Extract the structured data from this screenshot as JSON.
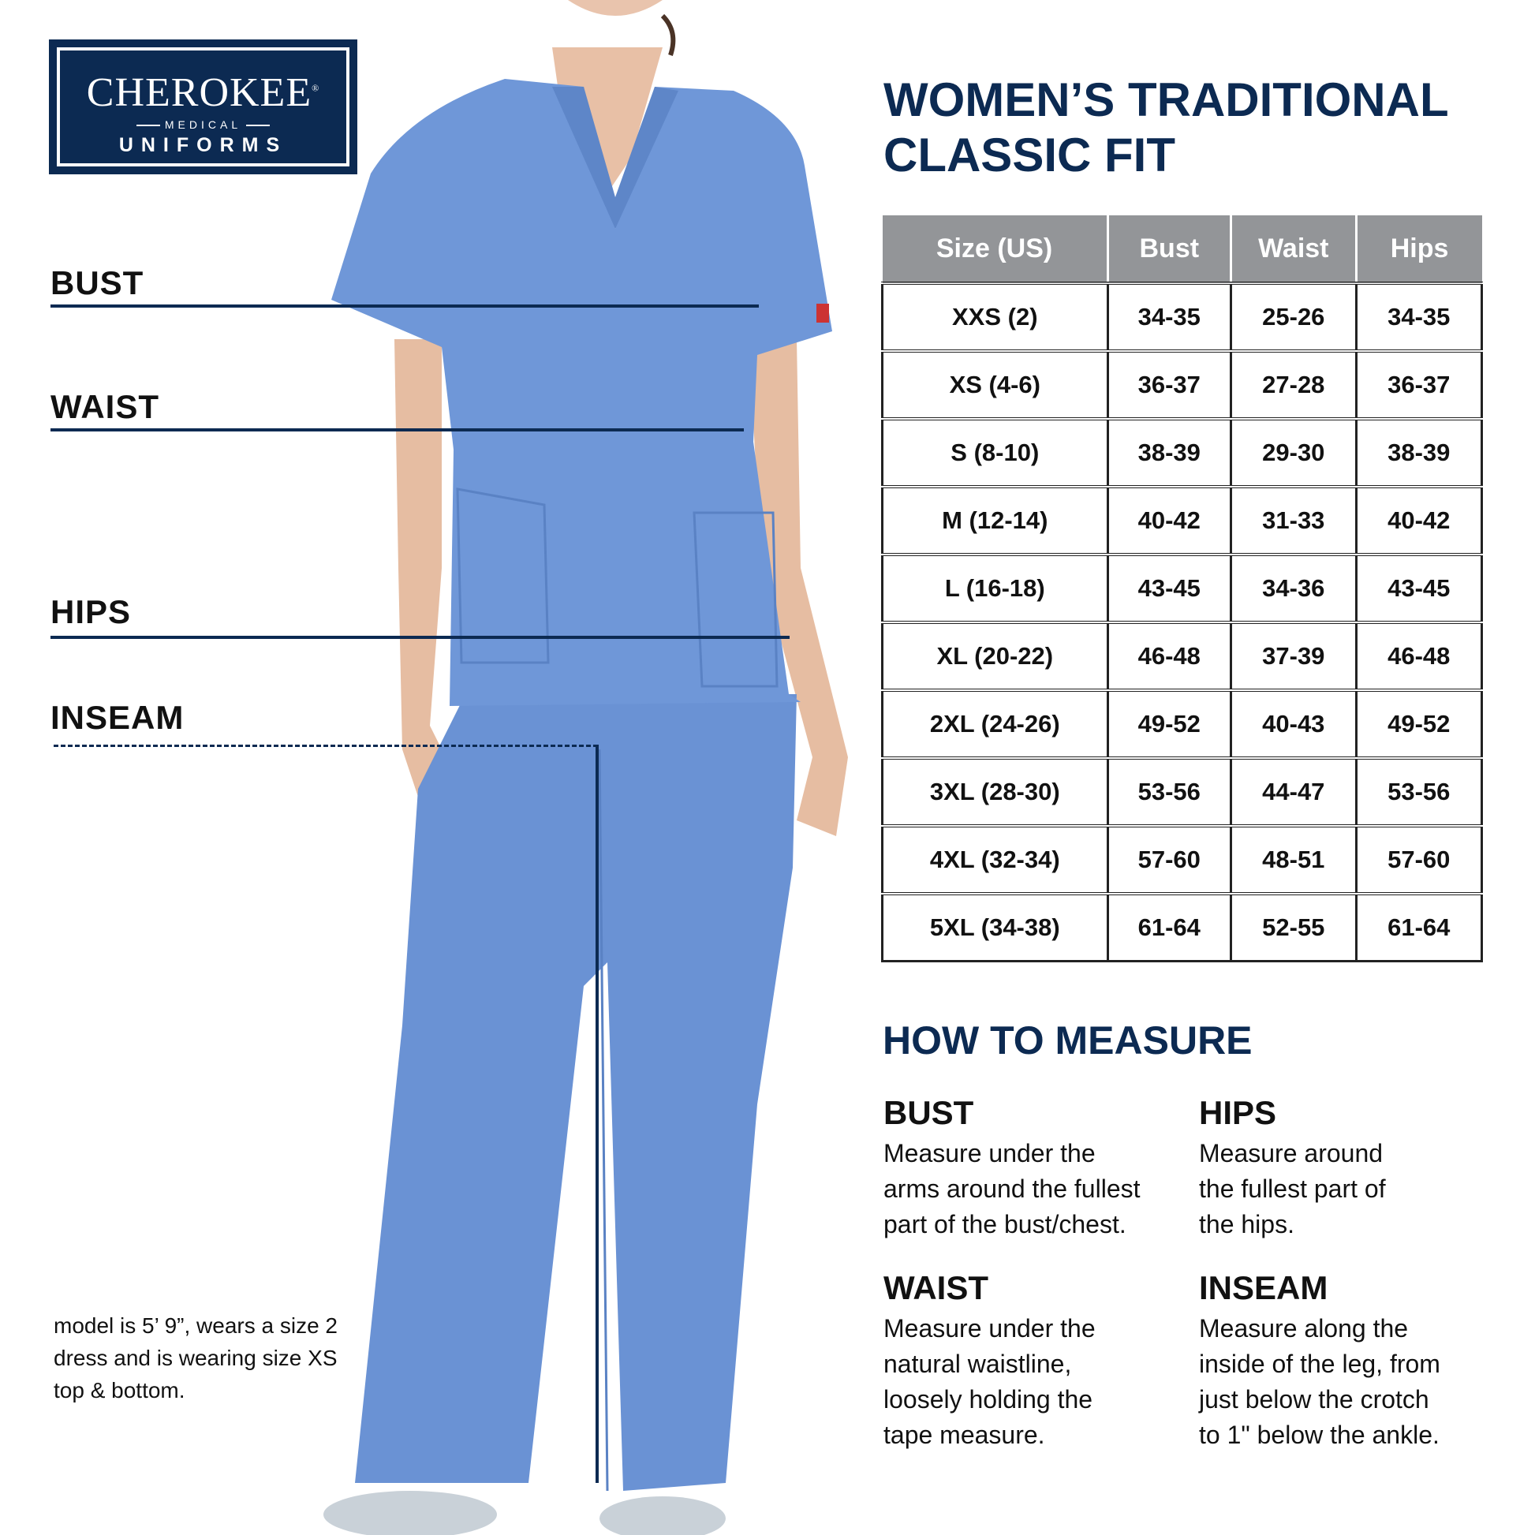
{
  "logo": {
    "brand": "CHEROKEE",
    "registered": "®",
    "sub": "MEDICAL",
    "line2": "UNIFORMS"
  },
  "title": {
    "line1": "WOMEN’S TRADITIONAL",
    "line2": "CLASSIC FIT"
  },
  "figure_labels": {
    "bust": "BUST",
    "waist": "WAIST",
    "hips": "HIPS",
    "inseam": "INSEAM"
  },
  "colors": {
    "navy": "#0c2a52",
    "header_gray": "#939598",
    "scrubs_blue": "#6f97d8"
  },
  "table": {
    "headers": [
      "Size (US)",
      "Bust",
      "Waist",
      "Hips"
    ],
    "rows": [
      [
        "XXS (2)",
        "34-35",
        "25-26",
        "34-35"
      ],
      [
        "XS (4-6)",
        "36-37",
        "27-28",
        "36-37"
      ],
      [
        "S (8-10)",
        "38-39",
        "29-30",
        "38-39"
      ],
      [
        "M (12-14)",
        "40-42",
        "31-33",
        "40-42"
      ],
      [
        "L (16-18)",
        "43-45",
        "34-36",
        "43-45"
      ],
      [
        "XL (20-22)",
        "46-48",
        "37-39",
        "46-48"
      ],
      [
        "2XL (24-26)",
        "49-52",
        "40-43",
        "49-52"
      ],
      [
        "3XL (28-30)",
        "53-56",
        "44-47",
        "53-56"
      ],
      [
        "4XL (32-34)",
        "57-60",
        "48-51",
        "57-60"
      ],
      [
        "5XL (34-38)",
        "61-64",
        "52-55",
        "61-64"
      ]
    ]
  },
  "how_to_measure": {
    "title": "HOW TO MEASURE",
    "bust": {
      "heading": "BUST",
      "lines": [
        "Measure under the",
        "arms around the fullest",
        "part of the bust/chest."
      ]
    },
    "hips": {
      "heading": "HIPS",
      "lines": [
        "Measure around",
        "the fullest part of",
        "the hips."
      ]
    },
    "waist": {
      "heading": "WAIST",
      "lines": [
        "Measure under the",
        "natural waistline,",
        "loosely holding the",
        "tape measure."
      ]
    },
    "inseam": {
      "heading": "INSEAM",
      "lines": [
        "Measure along the",
        "inside of the leg, from",
        "just below the crotch",
        "to 1\" below the ankle."
      ]
    }
  },
  "model_note": {
    "lines": [
      "model is 5’ 9”, wears a size 2",
      "dress and is wearing size XS",
      "top & bottom."
    ]
  }
}
